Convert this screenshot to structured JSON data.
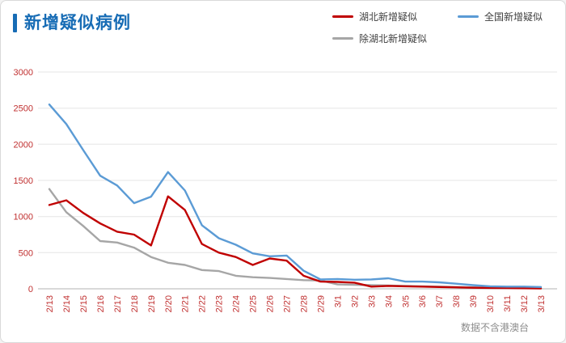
{
  "header": {
    "title": "新增疑似病例"
  },
  "legend": [
    {
      "id": "hubei",
      "label": "湖北新增疑似",
      "color": "#c00000"
    },
    {
      "id": "national",
      "label": "全国新增疑似",
      "color": "#5b9bd5"
    },
    {
      "id": "ex-hubei",
      "label": "除湖北新增疑似",
      "color": "#a6a6a6"
    }
  ],
  "footnote": "数据不含港澳台",
  "chart_data": {
    "type": "line",
    "title": "新增疑似病例",
    "xlabel": "",
    "ylabel": "",
    "ylim": [
      0,
      3000
    ],
    "yticks": [
      0,
      500,
      1000,
      1500,
      2000,
      2500,
      3000
    ],
    "grid": true,
    "legend_position": "top-right",
    "axis_label_color": "#c03030",
    "note": "数据不含港澳台",
    "categories": [
      "2/13",
      "2/14",
      "2/15",
      "2/16",
      "2/17",
      "2/18",
      "2/19",
      "2/20",
      "2/21",
      "2/22",
      "2/23",
      "2/24",
      "2/25",
      "2/26",
      "2/27",
      "2/28",
      "2/29",
      "3/1",
      "3/2",
      "3/3",
      "3/4",
      "3/5",
      "3/6",
      "3/7",
      "3/8",
      "3/9",
      "3/10",
      "3/11",
      "3/12",
      "3/13"
    ],
    "series": [
      {
        "id": "hubei",
        "name": "湖北新增疑似",
        "color": "#c00000",
        "values": [
          1160,
          1225,
          1050,
          905,
          790,
          750,
          600,
          1280,
          1090,
          620,
          500,
          440,
          330,
          420,
          390,
          180,
          100,
          95,
          85,
          30,
          40,
          35,
          30,
          25,
          20,
          15,
          12,
          10,
          8,
          5
        ]
      },
      {
        "id": "national",
        "name": "全国新增疑似",
        "color": "#5b9bd5",
        "values": [
          2550,
          2280,
          1920,
          1565,
          1430,
          1185,
          1275,
          1615,
          1360,
          880,
          700,
          610,
          490,
          450,
          460,
          250,
          130,
          135,
          125,
          130,
          145,
          100,
          100,
          90,
          70,
          50,
          35,
          30,
          30,
          25
        ]
      },
      {
        "id": "ex-hubei",
        "name": "除湖北新增疑似",
        "color": "#a6a6a6",
        "values": [
          1380,
          1060,
          870,
          660,
          640,
          570,
          440,
          360,
          330,
          260,
          245,
          180,
          160,
          150,
          135,
          120,
          115,
          60,
          55,
          50,
          45,
          40,
          35,
          30,
          25,
          20,
          15,
          12,
          10,
          8
        ]
      }
    ]
  }
}
